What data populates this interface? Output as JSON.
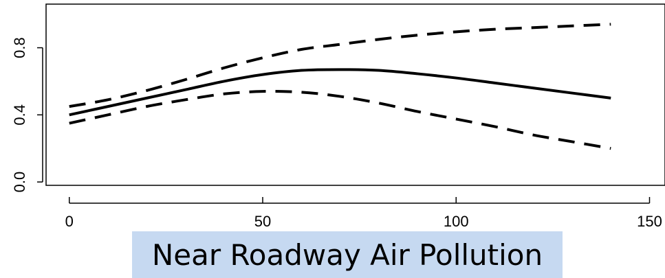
{
  "caption": "Near Roadway Air Pollution",
  "chart_data": {
    "type": "line",
    "title": "",
    "xlabel": "Near Roadway Air Pollution",
    "ylabel": "",
    "xlim": [
      -6,
      154
    ],
    "ylim": [
      -0.02,
      1.06
    ],
    "x_ticks": [
      0,
      50,
      100,
      150
    ],
    "x_tick_labels": [
      "0",
      "50",
      "100",
      "150"
    ],
    "y_ticks": [
      0.0,
      0.4,
      0.8
    ],
    "y_tick_labels": [
      "0.0",
      "0.4",
      "0.8"
    ],
    "grid": false,
    "legend": "none",
    "series": [
      {
        "style": "solid",
        "x": [
          0,
          10,
          20,
          30,
          40,
          50,
          60,
          70,
          80,
          90,
          100,
          110,
          120,
          130,
          140
        ],
        "y": [
          0.4,
          0.45,
          0.5,
          0.55,
          0.6,
          0.64,
          0.665,
          0.67,
          0.665,
          0.645,
          0.62,
          0.59,
          0.56,
          0.53,
          0.5
        ]
      },
      {
        "style": "dashed",
        "x": [
          0,
          10,
          20,
          30,
          40,
          50,
          60,
          70,
          80,
          90,
          100,
          110,
          120,
          130,
          140
        ],
        "y": [
          0.45,
          0.49,
          0.545,
          0.61,
          0.68,
          0.74,
          0.79,
          0.82,
          0.85,
          0.875,
          0.895,
          0.91,
          0.92,
          0.93,
          0.94
        ]
      },
      {
        "style": "dashed",
        "x": [
          0,
          10,
          20,
          30,
          40,
          50,
          60,
          70,
          80,
          90,
          100,
          110,
          120,
          130,
          140
        ],
        "y": [
          0.35,
          0.4,
          0.45,
          0.49,
          0.525,
          0.54,
          0.535,
          0.51,
          0.47,
          0.42,
          0.375,
          0.33,
          0.28,
          0.24,
          0.2
        ]
      }
    ]
  }
}
